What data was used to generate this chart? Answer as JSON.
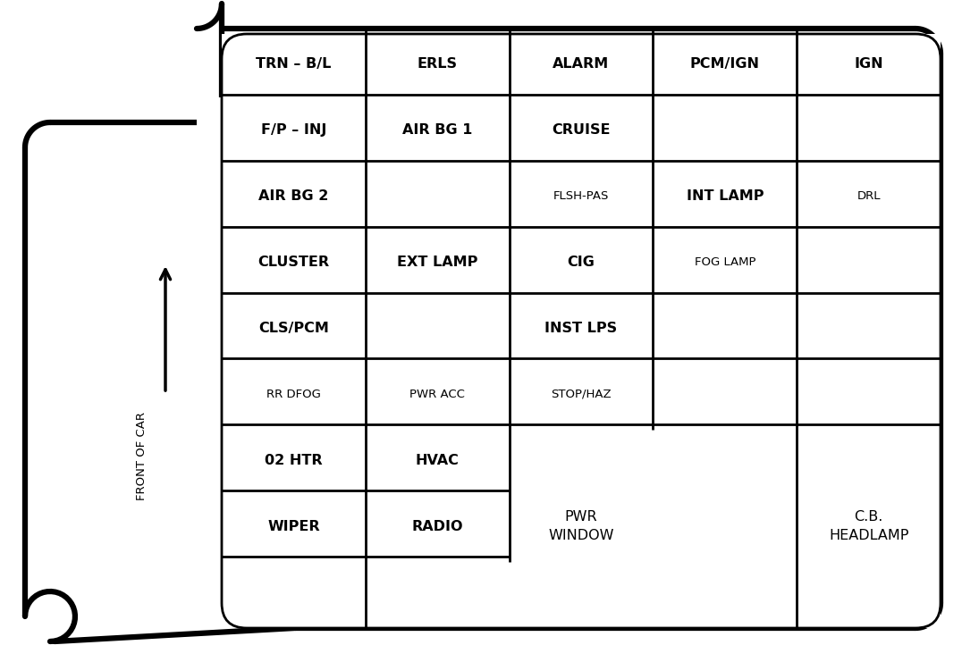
{
  "bg_color": "#ffffff",
  "line_color": "#000000",
  "text_color": "#000000",
  "fig_width": 10.76,
  "fig_height": 7.41,
  "cols": 5,
  "rows": 9,
  "cells": [
    {
      "row": 0,
      "col": 0,
      "text": "TRN – B/L",
      "bold": true,
      "fontsize": 11.5
    },
    {
      "row": 0,
      "col": 1,
      "text": "ERLS",
      "bold": true,
      "fontsize": 11.5
    },
    {
      "row": 0,
      "col": 2,
      "text": "ALARM",
      "bold": true,
      "fontsize": 11.5
    },
    {
      "row": 0,
      "col": 3,
      "text": "PCM/IGN",
      "bold": true,
      "fontsize": 11.5
    },
    {
      "row": 0,
      "col": 4,
      "text": "IGN",
      "bold": true,
      "fontsize": 11.5
    },
    {
      "row": 1,
      "col": 0,
      "text": "F/P – INJ",
      "bold": true,
      "fontsize": 11.5
    },
    {
      "row": 1,
      "col": 1,
      "text": "AIR BG 1",
      "bold": true,
      "fontsize": 11.5
    },
    {
      "row": 1,
      "col": 2,
      "text": "CRUISE",
      "bold": true,
      "fontsize": 11.5
    },
    {
      "row": 1,
      "col": 3,
      "text": "",
      "bold": false,
      "fontsize": 11.5
    },
    {
      "row": 1,
      "col": 4,
      "text": "",
      "bold": false,
      "fontsize": 11.5
    },
    {
      "row": 2,
      "col": 0,
      "text": "AIR BG 2",
      "bold": true,
      "fontsize": 11.5
    },
    {
      "row": 2,
      "col": 1,
      "text": "",
      "bold": false,
      "fontsize": 11.5
    },
    {
      "row": 2,
      "col": 2,
      "text": "FLSH-PAS",
      "bold": false,
      "fontsize": 9.5
    },
    {
      "row": 2,
      "col": 3,
      "text": "INT LAMP",
      "bold": true,
      "fontsize": 11.5
    },
    {
      "row": 2,
      "col": 4,
      "text": "DRL",
      "bold": false,
      "fontsize": 9.5
    },
    {
      "row": 3,
      "col": 0,
      "text": "CLUSTER",
      "bold": true,
      "fontsize": 11.5
    },
    {
      "row": 3,
      "col": 1,
      "text": "EXT LAMP",
      "bold": true,
      "fontsize": 11.5
    },
    {
      "row": 3,
      "col": 2,
      "text": "CIG",
      "bold": true,
      "fontsize": 11.5
    },
    {
      "row": 3,
      "col": 3,
      "text": "FOG LAMP",
      "bold": false,
      "fontsize": 9.5
    },
    {
      "row": 3,
      "col": 4,
      "text": "",
      "bold": false,
      "fontsize": 11.5
    },
    {
      "row": 4,
      "col": 0,
      "text": "CLS/PCM",
      "bold": true,
      "fontsize": 11.5
    },
    {
      "row": 4,
      "col": 1,
      "text": "",
      "bold": false,
      "fontsize": 11.5
    },
    {
      "row": 4,
      "col": 2,
      "text": "INST LPS",
      "bold": true,
      "fontsize": 11.5
    },
    {
      "row": 4,
      "col": 3,
      "text": "",
      "bold": false,
      "fontsize": 11.5
    },
    {
      "row": 4,
      "col": 4,
      "text": "",
      "bold": false,
      "fontsize": 11.5
    },
    {
      "row": 5,
      "col": 0,
      "text": "RR DFOG",
      "bold": false,
      "fontsize": 9.5
    },
    {
      "row": 5,
      "col": 1,
      "text": "PWR ACC",
      "bold": false,
      "fontsize": 9.5
    },
    {
      "row": 5,
      "col": 2,
      "text": "STOP/HAZ",
      "bold": false,
      "fontsize": 9.5
    },
    {
      "row": 5,
      "col": 3,
      "text": "",
      "bold": false,
      "fontsize": 11.5
    },
    {
      "row": 5,
      "col": 4,
      "text": "",
      "bold": false,
      "fontsize": 11.5
    },
    {
      "row": 6,
      "col": 0,
      "text": "02 HTR",
      "bold": true,
      "fontsize": 11.5
    },
    {
      "row": 6,
      "col": 1,
      "text": "HVAC",
      "bold": true,
      "fontsize": 11.5
    },
    {
      "row": 7,
      "col": 0,
      "text": "WIPER",
      "bold": true,
      "fontsize": 11.5
    },
    {
      "row": 7,
      "col": 1,
      "text": "RADIO",
      "bold": true,
      "fontsize": 11.5
    },
    {
      "row": 8,
      "col": 0,
      "text": "",
      "bold": false,
      "fontsize": 11.5
    },
    {
      "row": 8,
      "col": 1,
      "text": "",
      "bold": false,
      "fontsize": 11.5
    }
  ],
  "pwr_window_text": "PWR\nWINDOW",
  "cb_headlamp_text": "C.B.\nHEADLAMP",
  "label_text": "FRONT OF CAR"
}
